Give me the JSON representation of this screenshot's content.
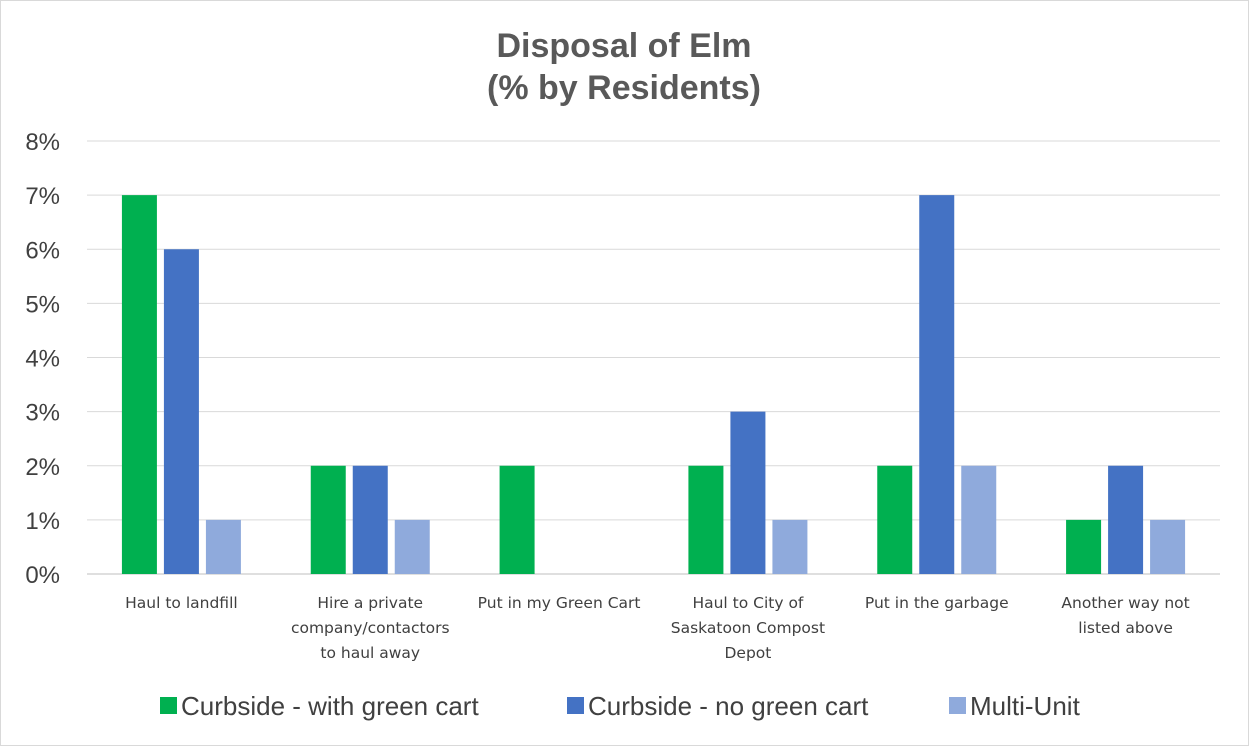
{
  "chart_data": {
    "type": "bar",
    "title": [
      "Disposal of Elm",
      "(% by Residents)"
    ],
    "xlabel": "",
    "ylabel": "",
    "y_ticks": [
      "0%",
      "1%",
      "2%",
      "3%",
      "4%",
      "5%",
      "6%",
      "7%",
      "8%"
    ],
    "ylim": [
      0,
      8
    ],
    "grid": true,
    "legend_position": "bottom",
    "categories": [
      [
        "Haul to landfill"
      ],
      [
        "Hire a private",
        "company/contactors",
        "to haul away"
      ],
      [
        "Put in my Green Cart"
      ],
      [
        "Haul to City of",
        "Saskatoon Compost",
        "Depot"
      ],
      [
        "Put in the garbage"
      ],
      [
        "Another way not",
        "listed above"
      ]
    ],
    "series": [
      {
        "name": "Curbside - with green cart",
        "color": "#00b050",
        "values": [
          7,
          2,
          2,
          2,
          2,
          1
        ]
      },
      {
        "name": "Curbside - no green cart",
        "color": "#4472c4",
        "values": [
          6,
          2,
          null,
          3,
          7,
          2
        ]
      },
      {
        "name": "Multi-Unit",
        "color": "#8faadc",
        "values": [
          1,
          1,
          null,
          1,
          2,
          1
        ]
      }
    ]
  }
}
